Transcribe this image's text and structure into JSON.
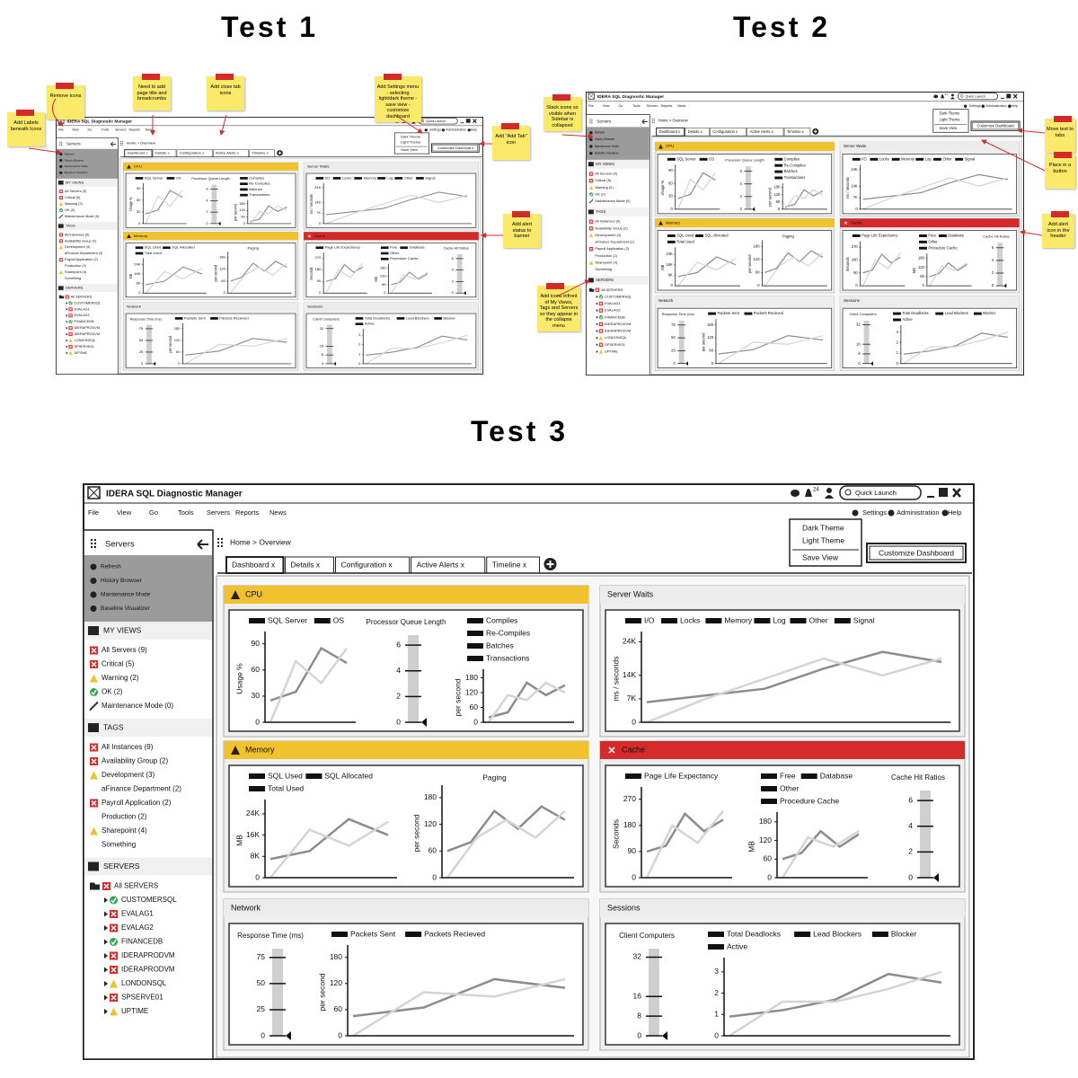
{
  "titles": [
    "Test 1",
    "Test 2",
    "Test 3"
  ],
  "test1_notes": [
    "Remove icons",
    "Need to add page title and breadcrumbs",
    "Add close tab icons",
    "Add Settings menu - selecting light/dark theme - save view - customize dashboard",
    "Add Labels beneath Icons",
    "Add \"Add Tab\" icon",
    "Add alert status to banner"
  ],
  "test2_notes": [
    "Stack icons so visible when Sidebar is collapsed",
    "Move text to tabs",
    "Place in a button",
    "Add alert icon in the header",
    "Add icons infront of My Views, Tags and Servers so they appear in the collapse menu"
  ],
  "app": {
    "title": "IDERA SQL Diagnostic Manager",
    "notifications": 24,
    "search_placeholder": "Quick Launch",
    "menu": [
      "File",
      "View",
      "Go",
      "Tools",
      "Servers",
      "Reports",
      "News"
    ],
    "toolbar": [
      "Settings",
      "Administration",
      "Help"
    ],
    "settings_menu": [
      "Dark Theme",
      "Light Theme",
      "Save View"
    ],
    "customize_button": "Customize Dashboard",
    "breadcrumb": "Home > Overview",
    "tabs": [
      "Dashboard x",
      "Details x",
      "Configuration x",
      "Active Alerts x",
      "Timeline x"
    ],
    "sidebar": {
      "title": "Servers",
      "actions": [
        "Refresh",
        "History Browser",
        "Maintenance Mode",
        "Baseline Visualizer"
      ],
      "sections": [
        {
          "title": "MY VIEWS",
          "items": [
            {
              "label": "All Servers (9)",
              "status": "critical"
            },
            {
              "label": "Critical (5)",
              "status": "critical"
            },
            {
              "label": "Warning (2)",
              "status": "warning"
            },
            {
              "label": "OK (2)",
              "status": "ok"
            },
            {
              "label": "Maintenance Mode (0)",
              "status": "maintenance"
            }
          ]
        },
        {
          "title": "TAGS",
          "items": [
            {
              "label": "All Instances (9)",
              "status": "critical"
            },
            {
              "label": "Availability Group (2)",
              "status": "critical"
            },
            {
              "label": "Development (3)",
              "status": "warning"
            },
            {
              "label": "aFinance Department (2)",
              "status": "none"
            },
            {
              "label": "Payroll Application (2)",
              "status": "critical"
            },
            {
              "label": "Production (2)",
              "status": "none"
            },
            {
              "label": "Sharepoint (4)",
              "status": "warning"
            },
            {
              "label": "Something",
              "status": "none"
            }
          ]
        },
        {
          "title": "SERVERS",
          "items": [
            {
              "label": "All SERVERS",
              "status": "critical"
            },
            {
              "label": "CUSTOMERSQL",
              "status": "ok"
            },
            {
              "label": "EVALAG1",
              "status": "critical"
            },
            {
              "label": "EVALAG2",
              "status": "critical"
            },
            {
              "label": "FINANCEDB",
              "status": "ok"
            },
            {
              "label": "IDERAPRODVM",
              "status": "critical"
            },
            {
              "label": "IDERAPRODVM",
              "status": "critical"
            },
            {
              "label": "LONDONSQL",
              "status": "warning"
            },
            {
              "label": "SPSERVE01",
              "status": "critical"
            },
            {
              "label": "UPTIME",
              "status": "warning"
            }
          ]
        }
      ]
    },
    "panels": [
      {
        "title": "CPU",
        "status": "warning",
        "charts": [
          {
            "type": "line",
            "legend": [
              "SQL Server",
              "OS"
            ],
            "ylabel": "Usage %",
            "ylim": [
              0,
              100
            ],
            "yticks": [
              0,
              30,
              60,
              90
            ],
            "series": [
              {
                "color": "#8c8c8c",
                "values": [
                  25,
                  35,
                  85,
                  68
                ]
              },
              {
                "color": "#d4d4d4",
                "values": [
                  0,
                  70,
                  45,
                  85
                ]
              }
            ]
          },
          {
            "type": "gauge",
            "title": "Processor Queue Length",
            "ylim": [
              0,
              6.5
            ],
            "yticks": [
              0,
              2,
              4,
              6
            ],
            "value": 0
          },
          {
            "type": "line",
            "legend": [
              "Compiles",
              "Re-Compiles",
              "Batches",
              "Transactions"
            ],
            "ylabel": "per second",
            "ylim": [
              0,
              200
            ],
            "yticks": [
              0,
              60,
              120,
              180
            ],
            "series": [
              {
                "color": "#8c8c8c",
                "values": [
                  20,
                  40,
                  160,
                  110,
                  150
                ]
              },
              {
                "color": "#d4d4d4",
                "values": [
                  0,
                  110,
                  90,
                  160,
                  120
                ]
              }
            ]
          }
        ]
      },
      {
        "title": "Server Waits",
        "status": "none",
        "charts": [
          {
            "type": "line",
            "legend": [
              "I/O",
              "Locks",
              "Memory",
              "Log",
              "Other",
              "Signal"
            ],
            "ylabel": "ms / seconds",
            "ylim": [
              0,
              26000
            ],
            "yticks": [
              0,
              {
                "value": 7000,
                "label": "7K"
              },
              {
                "value": 14000,
                "label": "14K"
              },
              {
                "value": 24000,
                "label": "24K"
              }
            ],
            "series": [
              {
                "color": "#8c8c8c",
                "values": [
                  6000,
                  8000,
                  10000,
                  16000,
                  21000,
                  18000
                ]
              },
              {
                "color": "#d4d4d4",
                "values": [
                  0,
                  7000,
                  13000,
                  19000,
                  14000,
                  19000
                ]
              }
            ]
          }
        ]
      },
      {
        "title": "Memory",
        "status": "warning",
        "charts": [
          {
            "type": "line",
            "legend": [
              "SQL Used",
              "SQL Allocated",
              "Total Used"
            ],
            "ylabel": "MB",
            "ylim": [
              0,
              28000
            ],
            "yticks": [
              0,
              {
                "value": 8000,
                "label": "8K"
              },
              {
                "value": 16000,
                "label": "16K"
              },
              {
                "value": 24000,
                "label": "24K"
              }
            ],
            "series": [
              {
                "color": "#8c8c8c",
                "values": [
                  7000,
                  10000,
                  22000,
                  16000
                ]
              },
              {
                "color": "#d4d4d4",
                "values": [
                  0,
                  18000,
                  12000,
                  21000
                ]
              }
            ]
          },
          {
            "type": "line",
            "title": "Paging",
            "ylabel": "per second",
            "ylim": [
              0,
              200
            ],
            "yticks": [
              0,
              60,
              120,
              180
            ],
            "series": [
              {
                "color": "#8c8c8c",
                "values": [
                  60,
                  80,
                  150,
                  110,
                  160,
                  130
                ]
              },
              {
                "color": "#d4d4d4",
                "values": [
                  0,
                  90,
                  130,
                  90,
                  150
                ]
              }
            ]
          }
        ]
      },
      {
        "title": "Cache",
        "status": "critical",
        "charts": [
          {
            "type": "line",
            "legend": [
              "Page Life Expectancy"
            ],
            "ylabel": "Seconds",
            "ylim": [
              0,
              300
            ],
            "yticks": [
              0,
              90,
              180,
              270
            ],
            "series": [
              {
                "color": "#8c8c8c",
                "values": [
                  90,
                  110,
                  220,
                  160,
                  200
                ]
              },
              {
                "color": "#d4d4d4",
                "values": [
                  0,
                  180,
                  120,
                  230
                ]
              }
            ]
          },
          {
            "type": "line",
            "legend": [
              "Free",
              "Database",
              "Other",
              "Procedure Cache"
            ],
            "ylabel": "MB",
            "ylim": [
              0,
              200
            ],
            "yticks": [
              0,
              60,
              120,
              180
            ],
            "series": [
              {
                "color": "#8c8c8c",
                "values": [
                  60,
                  80,
                  150,
                  100,
                  140
                ]
              },
              {
                "color": "#d4d4d4",
                "values": [
                  0,
                  130,
                  100,
                  150
                ]
              }
            ]
          },
          {
            "type": "gauge",
            "title": "Cache Hit Ratios",
            "ylim": [
              0,
              6.5
            ],
            "yticks": [
              0,
              2,
              4,
              6
            ],
            "value": 0
          }
        ]
      },
      {
        "title": "Network",
        "status": "none",
        "charts": [
          {
            "type": "gauge",
            "title": "Response Time (ms)",
            "ylim": [
              0,
              80
            ],
            "yticks": [
              0,
              25,
              50,
              75
            ],
            "value": 0
          },
          {
            "type": "line",
            "legend": [
              "Packets Sent",
              "Packets Recieved"
            ],
            "ylabel": "per second",
            "ylim": [
              0,
              200
            ],
            "yticks": [
              0,
              60,
              120,
              180
            ],
            "series": [
              {
                "color": "#8c8c8c",
                "values": [
                  45,
                  65,
                  130,
                  110
                ]
              },
              {
                "color": "#d4d4d4",
                "values": [
                  0,
                  100,
                  90,
                  130
                ]
              }
            ]
          }
        ]
      },
      {
        "title": "Sessions",
        "status": "none",
        "charts": [
          {
            "type": "gauge",
            "title": "Client Computers",
            "ylim": [
              0,
              34
            ],
            "yticks": [
              0,
              8,
              16,
              32
            ],
            "value": 0
          },
          {
            "type": "line",
            "legend": [
              "Total Deadlocks",
              "Lead Blockers",
              "Blocker",
              "Active"
            ],
            "ylim": [
              0,
              3.5
            ],
            "yticks": [
              0,
              1,
              2,
              3
            ],
            "series": [
              {
                "color": "#8c8c8c",
                "values": [
                  0.9,
                  1.2,
                  1.7,
                  2.9,
                  2.5
                ]
              },
              {
                "color": "#d4d4d4",
                "values": [
                  0,
                  1.6,
                  1.6,
                  2.2,
                  3
                ]
              }
            ]
          }
        ]
      }
    ]
  }
}
